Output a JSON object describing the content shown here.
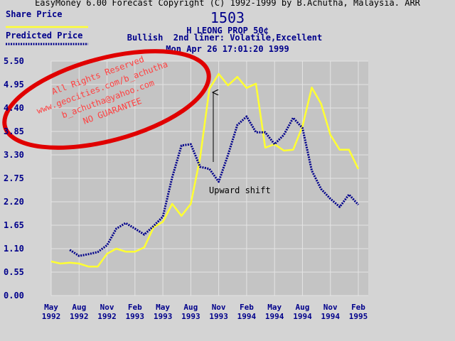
{
  "chart_data": {
    "type": "line",
    "header": "EasyMoney 6.00 Forecast Copyright (C) 1992-1999 by B.Achutha, Malaysia. ARR",
    "title": "1503",
    "subtitle": [
      "H LEONG PROP 50¢",
      "Bullish  2nd liner: Volatile,Excellent",
      "Mon Apr 26 17:01:20 1999"
    ],
    "categories": [
      "May 1992",
      null,
      null,
      "Aug 1992",
      null,
      null,
      "Nov 1992",
      null,
      null,
      "Feb 1993",
      null,
      null,
      "May 1993",
      null,
      null,
      "Aug 1993",
      null,
      null,
      "Nov 1993",
      null,
      null,
      "Feb 1994",
      null,
      null,
      "May 1994",
      null,
      null,
      "Aug 1994",
      null,
      null,
      "Nov 1994",
      null,
      null,
      "Feb 1995"
    ],
    "series": [
      {
        "name": "Share Price",
        "color": "#ffff33",
        "style": "solid",
        "values": [
          0.8,
          0.75,
          0.77,
          0.75,
          0.68,
          0.68,
          0.98,
          1.1,
          1.03,
          1.03,
          1.13,
          1.6,
          1.73,
          2.15,
          1.87,
          2.15,
          3.23,
          4.85,
          5.2,
          4.93,
          5.13,
          4.87,
          4.97,
          3.47,
          3.55,
          3.4,
          3.42,
          3.97,
          4.88,
          4.5,
          3.77,
          3.42,
          3.42,
          2.97
        ]
      },
      {
        "name": "Predicted Price",
        "color": "#00008b",
        "style": "dotted",
        "values": [
          null,
          null,
          1.07,
          0.93,
          0.97,
          1.02,
          1.18,
          1.57,
          1.7,
          1.57,
          1.43,
          1.63,
          1.85,
          2.77,
          3.52,
          3.55,
          3.02,
          2.97,
          2.67,
          3.3,
          4.0,
          4.2,
          3.83,
          3.83,
          3.55,
          3.77,
          4.17,
          3.93,
          2.93,
          2.5,
          2.27,
          2.08,
          2.37,
          2.13
        ]
      }
    ],
    "ylim": [
      0,
      5.5
    ],
    "yticks": [
      {
        "value": 0,
        "label": "0.00"
      },
      0.55,
      {
        "value": 1.1,
        "label": "1.10"
      },
      1.65,
      {
        "value": 2.2,
        "label": "2.20"
      },
      2.75,
      {
        "value": 3.3,
        "label": "3.30"
      },
      3.85,
      {
        "value": 4.4,
        "label": "4.40"
      },
      4.95,
      {
        "value": 5.5,
        "label": "5.50"
      }
    ],
    "grid": true,
    "annotations": [
      {
        "text": "Upward shift"
      }
    ],
    "stamp": [
      "All Rights Reserved",
      "www.geocities.com/b_achutha",
      "b_achutha@yahoo.com",
      "NO GUARANTEE"
    ]
  }
}
